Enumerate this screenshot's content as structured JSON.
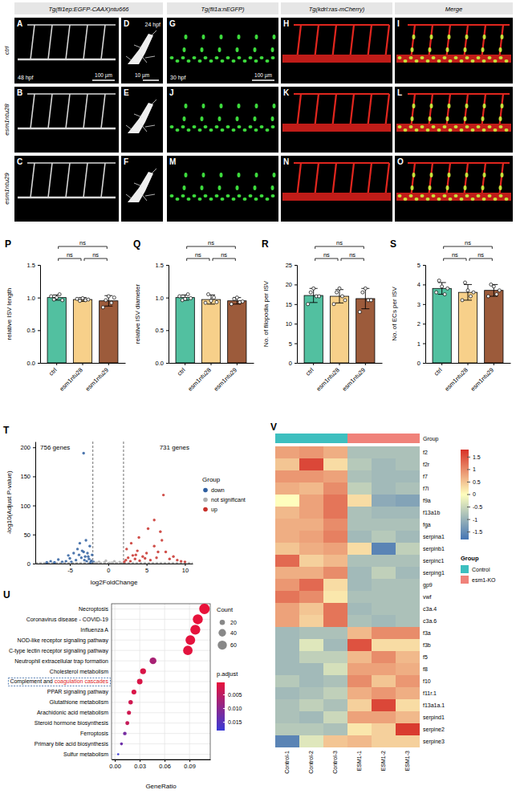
{
  "figure": {
    "column_headers": [
      "Tg(fli1ep:EGFP-CAAX)ntu666",
      "Tg(fli1a:nEGFP)",
      "Tg(kdrl:ras-mCherry)",
      "Merge"
    ],
    "row_labels": [
      "ctrl",
      "esm1ntu28",
      "esm1ntu29"
    ],
    "panel_letters": [
      [
        "A",
        "D",
        "G",
        "H",
        "I"
      ],
      [
        "B",
        "E",
        "J",
        "K",
        "L"
      ],
      [
        "C",
        "F",
        "M",
        "N",
        "O"
      ]
    ],
    "stage_labels": [
      "48 hpf",
      "24 hpf",
      "30 hpf"
    ],
    "scale_bars": [
      "100 µm",
      "10 µm",
      "100 µm"
    ]
  },
  "chart_data": [
    {
      "type": "bar",
      "panel": "P",
      "y_label": "relative ISV length",
      "categories": [
        "ctrl",
        "esm1ntu28",
        "esm1ntu29"
      ],
      "colors": [
        "#52c0a0",
        "#f7d08a",
        "#9c5b3b"
      ],
      "values": [
        1.0,
        0.97,
        0.95
      ],
      "errors": [
        0.04,
        0.03,
        0.08
      ],
      "points": [
        [
          1.02,
          0.97,
          1.0,
          1.05,
          0.96
        ],
        [
          0.98,
          0.95,
          0.99,
          0.96,
          0.97
        ],
        [
          0.85,
          0.96,
          1.02,
          0.92,
          1.0
        ]
      ],
      "ylim": [
        0,
        1.5
      ],
      "yticks": [
        {
          "value": 0,
          "label": "0.0"
        },
        {
          "value": 0.5,
          "label": "0.5"
        },
        {
          "value": 1,
          "label": "1.0"
        },
        {
          "value": 1.5,
          "label": "1.5"
        }
      ],
      "comparisons": [
        {
          "between": [
            0,
            1
          ],
          "label": "ns"
        },
        {
          "between": [
            1,
            2
          ],
          "label": "ns"
        },
        {
          "between": [
            0,
            2
          ],
          "label": "ns"
        }
      ]
    },
    {
      "type": "bar",
      "panel": "Q",
      "y_label": "relative ISV diameter",
      "categories": [
        "ctrl",
        "esm1ntu28",
        "esm1ntu29"
      ],
      "colors": [
        "#52c0a0",
        "#f7d08a",
        "#9c5b3b"
      ],
      "values": [
        1.0,
        0.97,
        0.95
      ],
      "errors": [
        0.04,
        0.07,
        0.05
      ],
      "points": [
        [
          1.02,
          0.96,
          0.98,
          1.05,
          0.99
        ],
        [
          0.92,
          1.05,
          0.95,
          1.0,
          0.93
        ],
        [
          0.9,
          0.98,
          1.0,
          0.93,
          0.94
        ]
      ],
      "ylim": [
        0,
        1.5
      ],
      "yticks": [
        {
          "value": 0,
          "label": "0.0"
        },
        {
          "value": 0.5,
          "label": "0.5"
        },
        {
          "value": 1,
          "label": "1.0"
        },
        {
          "value": 1.5,
          "label": "1.5"
        }
      ],
      "comparisons": [
        {
          "between": [
            0,
            1
          ],
          "label": "ns"
        },
        {
          "between": [
            1,
            2
          ],
          "label": "ns"
        },
        {
          "between": [
            0,
            2
          ],
          "label": "ns"
        }
      ]
    },
    {
      "type": "bar",
      "panel": "R",
      "y_label": "No. of filopodia per ISV",
      "categories": [
        "ctrl",
        "esm1ntu28",
        "esm1ntu29"
      ],
      "colors": [
        "#52c0a0",
        "#f7d08a",
        "#9c5b3b"
      ],
      "values": [
        17.2,
        17.0,
        16.4
      ],
      "errors": [
        1.8,
        1.7,
        2.6
      ],
      "points": [
        [
          15,
          18,
          19,
          17,
          17
        ],
        [
          15,
          18,
          19,
          17,
          16
        ],
        [
          13,
          18,
          19,
          16,
          16
        ]
      ],
      "ylim": [
        0,
        25
      ],
      "yticks": [
        0,
        5,
        10,
        15,
        20,
        25
      ],
      "comparisons": [
        {
          "between": [
            0,
            1
          ],
          "label": "ns"
        },
        {
          "between": [
            1,
            2
          ],
          "label": "ns"
        },
        {
          "between": [
            0,
            2
          ],
          "label": "ns"
        }
      ]
    },
    {
      "type": "bar",
      "panel": "S",
      "y_label": "No. of ECs per ISV",
      "categories": [
        "ctrl",
        "esm1ntu28",
        "esm1ntu29"
      ],
      "colors": [
        "#52c0a0",
        "#f7d08a",
        "#9c5b3b"
      ],
      "values": [
        3.8,
        3.6,
        3.7
      ],
      "errors": [
        0.3,
        0.4,
        0.3
      ],
      "points": [
        [
          3.6,
          4.2,
          3.9,
          3.5,
          3.8
        ],
        [
          3.2,
          4.1,
          3.7,
          3.4,
          3.6
        ],
        [
          3.4,
          4.0,
          3.9,
          3.5,
          3.7
        ]
      ],
      "ylim": [
        0,
        5
      ],
      "yticks": [
        0,
        1,
        2,
        3,
        4,
        5
      ],
      "comparisons": [
        {
          "between": [
            0,
            1
          ],
          "label": "ns"
        },
        {
          "between": [
            1,
            2
          ],
          "label": "ns"
        },
        {
          "between": [
            0,
            2
          ],
          "label": "ns"
        }
      ]
    },
    {
      "type": "scatter",
      "panel": "T",
      "x_label": "log2FoldChange",
      "y_label": "-log10(Adjust P-value)",
      "xlim": [
        -9.5,
        11
      ],
      "ylim": [
        0,
        210
      ],
      "xticks": [
        -5,
        0,
        5,
        10
      ],
      "yticks": [
        0,
        50,
        100,
        150,
        200
      ],
      "legend": "right",
      "legend_title": "Group",
      "annotations": [
        "756 genes",
        "731 genes"
      ],
      "reference_lines": {
        "x": [
          -2,
          2
        ],
        "y": [
          1.3
        ]
      },
      "series": [
        {
          "name": "down",
          "color": "#2f5fa0",
          "x": [
            -1.9,
            -2.2,
            -2.5,
            -2.8,
            -3,
            -3.2,
            -3.5,
            -3.8,
            -4,
            -4.2,
            -4.5,
            -5,
            -5.5,
            -6,
            -6.5,
            -7,
            -7.5,
            -8,
            -2.4,
            -2.9,
            -3.4,
            -2.1,
            -3.2,
            -2.6,
            -3.1,
            -2.3,
            -5.2,
            -3.7,
            -4.8,
            -2.7
          ],
          "values": [
            3,
            5,
            8,
            4,
            12,
            20,
            10,
            15,
            25,
            6,
            18,
            9,
            4,
            3,
            7,
            2,
            4,
            2,
            30,
            40,
            22,
            15,
            190,
            12,
            6,
            2,
            14,
            35,
            3,
            18
          ]
        },
        {
          "name": "not significant",
          "color": "#b0b0b0",
          "x": [
            -1.5,
            -1,
            -0.5,
            0,
            0.5,
            1,
            1.5,
            -1.2,
            0.8,
            -0.3,
            1.8,
            -1.8,
            0.2
          ],
          "values": [
            1,
            0.5,
            2,
            0.3,
            1.5,
            0.8,
            2.5,
            3,
            4,
            5,
            0.5,
            1.2,
            1
          ]
        },
        {
          "name": "up",
          "color": "#c8302a",
          "x": [
            2.1,
            2.3,
            2.6,
            2.9,
            3.2,
            3.5,
            3.8,
            4.1,
            4.5,
            5,
            5.5,
            6,
            6.3,
            6.8,
            7,
            7.2,
            7.5,
            8,
            8.5,
            9,
            9.5,
            10,
            2.4,
            3,
            4,
            5.2,
            6,
            6.5,
            3.6,
            4.8
          ],
          "values": [
            3,
            6,
            10,
            4,
            14,
            8,
            22,
            5,
            12,
            18,
            6,
            30,
            10,
            55,
            40,
            118,
            20,
            8,
            12,
            6,
            4,
            3,
            25,
            35,
            45,
            60,
            75,
            20,
            15,
            9
          ]
        }
      ]
    },
    {
      "type": "dot",
      "panel": "U",
      "x_label": "GeneRatio",
      "categories": [
        "Necroptosis",
        "Coronavirus disease - COVID-19",
        "Influenza A",
        "NOD-like receptor signaling pathway",
        "C-type lectin receptor signaling pathway",
        "Neutrophil extracellular trap formation",
        "Cholesterol metabolism",
        "Complement and coagulation cascades",
        "PPAR signaling pathway",
        "Glutathione metabolism",
        "Arachidonic acid metabolism",
        "Steroid hormone biosynthesis",
        "Ferroptosis",
        "Primary bile acid biosynthesis",
        "Sulfur metabolism"
      ],
      "values": [
        0.108,
        0.1,
        0.097,
        0.091,
        0.088,
        0.046,
        0.034,
        0.03,
        0.023,
        0.019,
        0.017,
        0.015,
        0.012,
        0.008,
        0.004
      ],
      "counts": [
        78,
        72,
        70,
        66,
        64,
        33,
        25,
        22,
        17,
        14,
        12,
        11,
        9,
        6,
        3
      ],
      "p_adjust": [
        0.0005,
        0.0006,
        0.0008,
        0.0009,
        0.001,
        0.007,
        0.002,
        0.002,
        0.002,
        0.003,
        0.003,
        0.004,
        0.012,
        0.013,
        0.018
      ],
      "xlim": [
        -0.004,
        0.115
      ],
      "xticks": [
        {
          "value": 0,
          "label": "0.00"
        },
        {
          "value": 0.03,
          "label": "0.03"
        },
        {
          "value": 0.06,
          "label": "0.06"
        },
        {
          "value": 0.09,
          "label": "0.09"
        }
      ],
      "grid": true,
      "highlight": "coagulation cascades",
      "size_legend": {
        "title": "Count",
        "values": [
          20,
          40,
          60
        ]
      },
      "color_legend": {
        "title": "p.adjust",
        "range": [
          0.0005,
          0.018
        ],
        "ticks": [
          {
            "value": 0.005,
            "label": "0.005"
          },
          {
            "value": 0.01,
            "label": "0.010"
          },
          {
            "value": 0.015,
            "label": "0.015"
          }
        ]
      }
    },
    {
      "type": "heatmap",
      "panel": "V",
      "rows": [
        "f2",
        "f2r",
        "f7",
        "f7i",
        "f9a",
        "f13a1b",
        "fga",
        "serpina1",
        "serpinb1",
        "serpinc1",
        "serping1",
        "gp9",
        "vwf",
        "c3a.4",
        "c3a.6",
        "f3a",
        "f3b",
        "f5",
        "f8",
        "f10",
        "f11r.1",
        "f13a1a.1",
        "serpind1",
        "serpine2",
        "serpine3"
      ],
      "columns": [
        "Control-1",
        "Control-2",
        "Control-3",
        "ESM1-1",
        "ESM1-2",
        "ESM1-3"
      ],
      "column_groups": [
        "Control",
        "Control",
        "Control",
        "esm1-KO",
        "esm1-KO",
        "esm1-KO"
      ],
      "group_label": "Group",
      "group_legend": {
        "title": "Group",
        "names": [
          "Control",
          "esm1-KO"
        ],
        "colors": [
          "#3dbfbf",
          "#f0827a"
        ]
      },
      "color_range": [
        -1.8,
        1.8
      ],
      "color_ticks": [
        1.5,
        1,
        0.5,
        0,
        -0.5,
        -1,
        -1.5
      ],
      "cells": [
        [
          0.8,
          0.9,
          0.7,
          -0.8,
          -0.8,
          -0.8
        ],
        [
          0.5,
          1.6,
          0.3,
          -0.7,
          -0.9,
          -0.8
        ],
        [
          0.9,
          0.9,
          0.8,
          -0.8,
          -0.9,
          -0.9
        ],
        [
          0.7,
          0.6,
          1.0,
          -0.6,
          -0.9,
          -0.8
        ],
        [
          0,
          0.8,
          1.2,
          0.3,
          -1.1,
          -1.2
        ],
        [
          0.6,
          0.8,
          1.2,
          -0.8,
          -0.9,
          -0.9
        ],
        [
          0.7,
          0.7,
          1.0,
          -0.8,
          -0.8,
          -0.8
        ],
        [
          0.7,
          0.8,
          1.1,
          -0.9,
          -0.7,
          -0.9
        ],
        [
          0.5,
          0.7,
          0.8,
          0.3,
          -1.6,
          -0.6
        ],
        [
          1.3,
          0.4,
          0.6,
          -0.8,
          -0.8,
          -0.8
        ],
        [
          0.7,
          0.7,
          1.0,
          -0.9,
          -0.6,
          -0.9
        ],
        [
          0.9,
          1.3,
          0.3,
          -0.9,
          -0.8,
          -0.8
        ],
        [
          1.2,
          1.0,
          0.2,
          -0.8,
          -0.8,
          -0.8
        ],
        [
          0.8,
          0.5,
          1.2,
          -0.9,
          -0.8,
          -0.8
        ],
        [
          0.8,
          0.4,
          1.2,
          -0.8,
          -0.9,
          -0.8
        ],
        [
          -0.9,
          -0.8,
          -0.8,
          0.6,
          1.0,
          1.0
        ],
        [
          -0.9,
          -0.3,
          -0.9,
          1.5,
          0.3,
          0.3
        ],
        [
          -0.9,
          -0.6,
          -0.6,
          0.6,
          1.0,
          0.6
        ],
        [
          -0.9,
          -0.9,
          -0.4,
          0.8,
          0.8,
          0.7
        ],
        [
          -0.7,
          -0.9,
          -0.8,
          1.0,
          0.5,
          0.9
        ],
        [
          -0.9,
          -0.8,
          -0.6,
          0.7,
          0.9,
          0.7
        ],
        [
          -0.8,
          -0.6,
          -0.8,
          0.4,
          1.6,
          0.3
        ],
        [
          -0.8,
          -0.9,
          -0.5,
          0.8,
          0.8,
          0.6
        ],
        [
          -0.7,
          -0.7,
          -0.8,
          0.2,
          0.4,
          1.7
        ],
        [
          -1.6,
          -0.3,
          0.5,
          0.6,
          0.4,
          0.4
        ]
      ]
    }
  ]
}
